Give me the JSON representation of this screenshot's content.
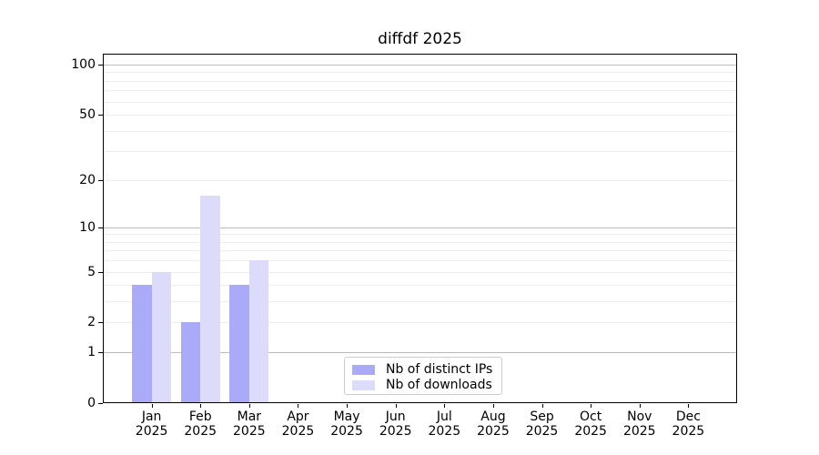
{
  "chart_data": {
    "type": "bar",
    "title": "diffdf 2025",
    "categories": [
      "Jan",
      "Feb",
      "Mar",
      "Apr",
      "May",
      "Jun",
      "Jul",
      "Aug",
      "Sep",
      "Oct",
      "Nov",
      "Dec"
    ],
    "year_label": "2025",
    "series": [
      {
        "name": "Nb of distinct IPs",
        "color": "#abaaf9",
        "values": [
          4,
          2,
          4,
          0,
          0,
          0,
          0,
          0,
          0,
          0,
          0,
          0
        ]
      },
      {
        "name": "Nb of downloads",
        "color": "#dcdcfa",
        "values": [
          5,
          16,
          6,
          0,
          0,
          0,
          0,
          0,
          0,
          0,
          0,
          0
        ]
      }
    ],
    "y_axis": {
      "scale": "log1p",
      "ticks": [
        0,
        1,
        2,
        5,
        10,
        20,
        50,
        100
      ],
      "ylim": [
        0,
        116
      ],
      "major_gridlines": [
        1,
        10,
        100
      ],
      "minor_gridlines": [
        2,
        3,
        4,
        5,
        6,
        7,
        8,
        9,
        20,
        30,
        40,
        50,
        60,
        70,
        80,
        90
      ]
    },
    "legend": {
      "position": "lower center"
    },
    "grid": true,
    "colors": {
      "major_grid": "#bcbcbc",
      "minor_grid": "#ededed",
      "spine": "#000000",
      "text": "#000000",
      "background": "#ffffff"
    }
  }
}
